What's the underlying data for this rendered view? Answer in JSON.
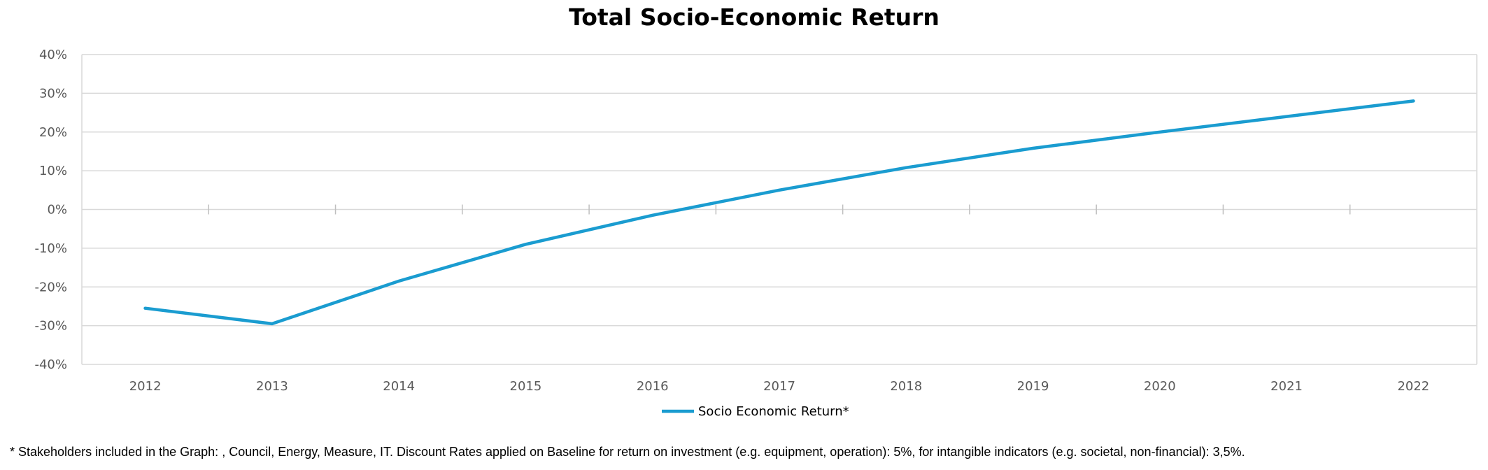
{
  "chart_data": {
    "type": "line",
    "title": "Total Socio-Economic Return",
    "x": [
      "2012",
      "2013",
      "2014",
      "2015",
      "2016",
      "2017",
      "2018",
      "2019",
      "2020",
      "2021",
      "2022"
    ],
    "series": [
      {
        "name": "Socio Economic Return*",
        "color": "#1a9cd0",
        "values": [
          -25.5,
          -29.5,
          -18.5,
          -9.0,
          -1.5,
          5.0,
          10.8,
          15.8,
          20.0,
          24.0,
          28.0
        ]
      }
    ],
    "ylim": [
      -40,
      40
    ],
    "yticks": [
      40,
      30,
      20,
      10,
      0,
      -10,
      -20,
      -30,
      -40
    ],
    "ytick_format": "percent",
    "grid": true,
    "legend": "bottom-center"
  },
  "footnote": "* Stakeholders included in the Graph: , Council, Energy, Measure, IT. Discount Rates applied on Baseline for return on investment (e.g. equipment, operation): 5%, for intangible indicators (e.g. societal, non-financial): 3,5%."
}
